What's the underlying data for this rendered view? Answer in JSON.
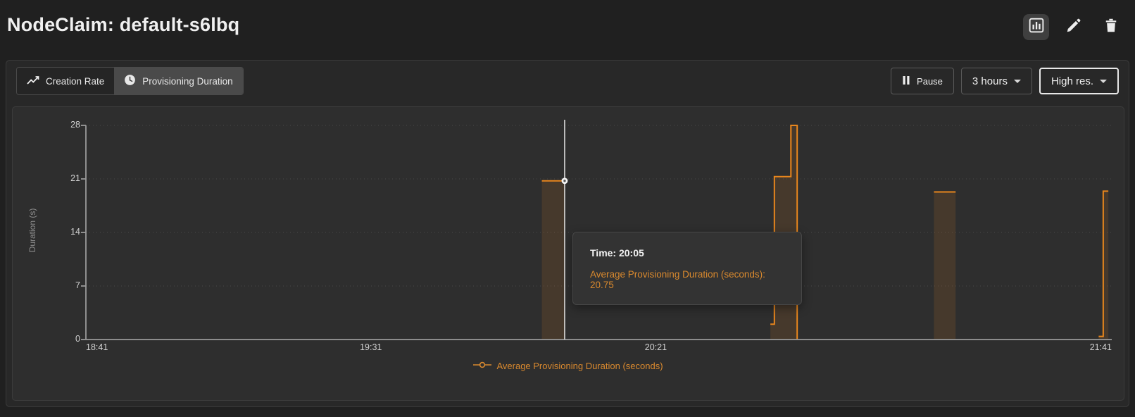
{
  "header": {
    "title": "NodeClaim: default-s6lbq",
    "action_icons": [
      "bar-chart-icon",
      "pencil-icon",
      "trash-icon"
    ]
  },
  "toolbar": {
    "tabs": [
      {
        "label": "Creation Rate",
        "icon": "trend-line-icon",
        "active": false
      },
      {
        "label": "Provisioning Duration",
        "icon": "clock-icon",
        "active": true
      }
    ],
    "pause": {
      "label": "Pause",
      "icon": "pause-icon"
    },
    "time_range": {
      "label": "3 hours",
      "icon": "chevron-down-icon"
    },
    "resolution": {
      "label": "High res.",
      "icon": "chevron-down-icon",
      "focused": true
    }
  },
  "chart_data": {
    "type": "area",
    "style": "step-line-with-area-fill",
    "title": "",
    "xlabel": "",
    "ylabel": "Duration (s)",
    "ylim": [
      0,
      28
    ],
    "yticks": [
      0,
      7,
      14,
      21,
      28
    ],
    "x_range_minutes": 180,
    "xticks": [
      {
        "label": "18:41",
        "t": 0,
        "align": "left"
      },
      {
        "label": "19:31",
        "t": 50,
        "align": "center"
      },
      {
        "label": "20:21",
        "t": 100,
        "align": "center"
      },
      {
        "label": "21:41",
        "t": 180,
        "align": "right"
      }
    ],
    "grid": {
      "horizontal": "dotted",
      "vertical": "none"
    },
    "axis_color": "#9a9a9a",
    "grid_color": "rgba(255,255,255,0.13)",
    "series": [
      {
        "name": "Average Provisioning Duration (seconds)",
        "color": "#e8861d",
        "fill": "rgba(232,134,29,0.13)",
        "segments": [
          [
            [
              80,
              20.75
            ],
            [
              84,
              20.75
            ]
          ],
          [
            [
              120.1,
              2
            ],
            [
              120.8,
              2
            ],
            [
              120.8,
              21.3
            ],
            [
              123.7,
              21.3
            ],
            [
              123.7,
              28
            ],
            [
              124.8,
              28
            ],
            [
              124.8,
              0
            ]
          ],
          [
            [
              148.8,
              19.3
            ],
            [
              152.6,
              19.3
            ]
          ],
          [
            [
              177.7,
              0.4
            ],
            [
              178.5,
              0.4
            ],
            [
              178.5,
              19.4
            ],
            [
              179.4,
              19.4
            ]
          ]
        ]
      }
    ],
    "legend": {
      "position": "bottom",
      "items": [
        {
          "label": "Average Provisioning Duration (seconds)",
          "color": "#d9892e"
        }
      ]
    },
    "crosshair": {
      "t": 84,
      "value": 20.75,
      "time": "20:05",
      "color": "#eeeeee"
    }
  },
  "tooltip": {
    "time_row": "Time: 20:05",
    "value_row": "Average Provisioning Duration (seconds): 20.75",
    "value_color": "#d9892e"
  }
}
